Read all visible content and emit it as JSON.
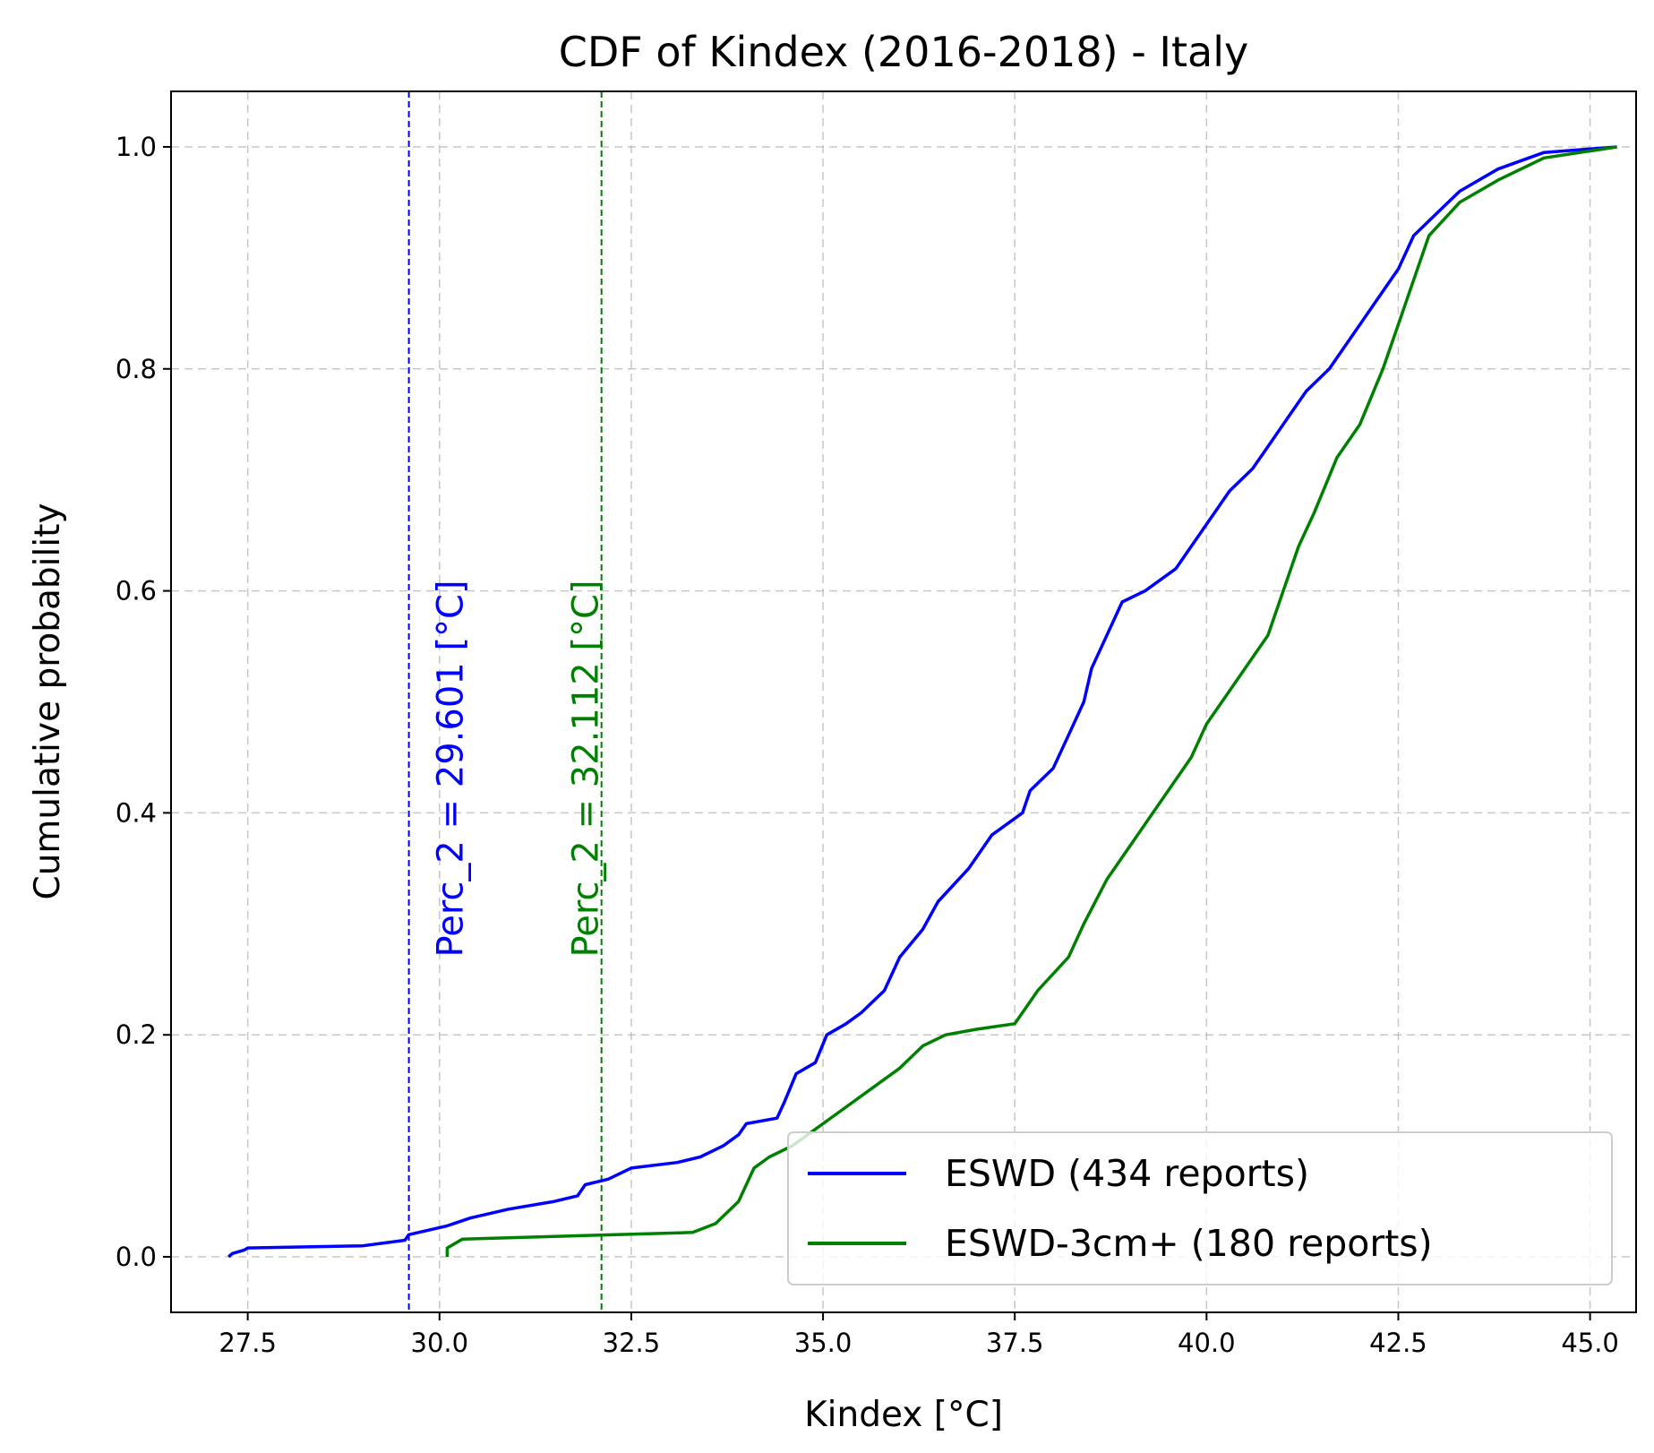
{
  "chart_data": {
    "type": "line",
    "title": "CDF of Kindex (2016-2018) - Italy",
    "xlabel": "Kindex [°C]",
    "ylabel": "Cumulative probability",
    "xlim": [
      26.5,
      45.6
    ],
    "ylim": [
      -0.05,
      1.05
    ],
    "xticks": [
      27.5,
      30.0,
      32.5,
      35.0,
      37.5,
      40.0,
      42.5,
      45.0
    ],
    "xtick_labels": [
      "27.5",
      "30.0",
      "32.5",
      "35.0",
      "37.5",
      "40.0",
      "42.5",
      "45.0"
    ],
    "yticks": [
      0.0,
      0.2,
      0.4,
      0.6,
      0.8,
      1.0
    ],
    "ytick_labels": [
      "0.0",
      "0.2",
      "0.4",
      "0.6",
      "0.8",
      "1.0"
    ],
    "grid": true,
    "legend_position": "lower-right",
    "series": [
      {
        "name": "ESWD (434 reports)",
        "color": "#0000ff",
        "points": [
          [
            27.25,
            0.0
          ],
          [
            27.3,
            0.003
          ],
          [
            27.45,
            0.006
          ],
          [
            27.5,
            0.008
          ],
          [
            29.0,
            0.01
          ],
          [
            29.55,
            0.015
          ],
          [
            29.6,
            0.02
          ],
          [
            30.1,
            0.028
          ],
          [
            30.4,
            0.035
          ],
          [
            30.9,
            0.043
          ],
          [
            31.5,
            0.05
          ],
          [
            31.8,
            0.055
          ],
          [
            31.9,
            0.065
          ],
          [
            32.2,
            0.07
          ],
          [
            32.5,
            0.08
          ],
          [
            33.1,
            0.085
          ],
          [
            33.4,
            0.09
          ],
          [
            33.7,
            0.1
          ],
          [
            33.9,
            0.11
          ],
          [
            34.0,
            0.12
          ],
          [
            34.4,
            0.125
          ],
          [
            34.5,
            0.14
          ],
          [
            34.65,
            0.165
          ],
          [
            34.9,
            0.175
          ],
          [
            35.05,
            0.2
          ],
          [
            35.3,
            0.21
          ],
          [
            35.5,
            0.22
          ],
          [
            35.8,
            0.24
          ],
          [
            36.0,
            0.27
          ],
          [
            36.3,
            0.295
          ],
          [
            36.5,
            0.32
          ],
          [
            36.9,
            0.35
          ],
          [
            37.2,
            0.38
          ],
          [
            37.6,
            0.4
          ],
          [
            37.7,
            0.42
          ],
          [
            38.0,
            0.44
          ],
          [
            38.2,
            0.47
          ],
          [
            38.4,
            0.5
          ],
          [
            38.5,
            0.53
          ],
          [
            38.7,
            0.56
          ],
          [
            38.9,
            0.59
          ],
          [
            39.2,
            0.6
          ],
          [
            39.4,
            0.61
          ],
          [
            39.6,
            0.62
          ],
          [
            39.8,
            0.64
          ],
          [
            40.1,
            0.67
          ],
          [
            40.3,
            0.69
          ],
          [
            40.6,
            0.71
          ],
          [
            40.8,
            0.73
          ],
          [
            41.1,
            0.76
          ],
          [
            41.3,
            0.78
          ],
          [
            41.6,
            0.8
          ],
          [
            41.9,
            0.83
          ],
          [
            42.2,
            0.86
          ],
          [
            42.5,
            0.89
          ],
          [
            42.7,
            0.92
          ],
          [
            43.0,
            0.94
          ],
          [
            43.3,
            0.96
          ],
          [
            43.8,
            0.98
          ],
          [
            44.4,
            0.995
          ],
          [
            45.35,
            1.0
          ]
        ]
      },
      {
        "name": "ESWD-3cm+ (180 reports)",
        "color": "#008000",
        "points": [
          [
            30.1,
            0.0
          ],
          [
            30.1,
            0.008
          ],
          [
            30.3,
            0.016
          ],
          [
            33.3,
            0.022
          ],
          [
            33.6,
            0.03
          ],
          [
            33.9,
            0.05
          ],
          [
            34.1,
            0.08
          ],
          [
            34.3,
            0.09
          ],
          [
            34.6,
            0.1
          ],
          [
            35.2,
            0.13
          ],
          [
            35.6,
            0.15
          ],
          [
            36.0,
            0.17
          ],
          [
            36.3,
            0.19
          ],
          [
            36.6,
            0.2
          ],
          [
            37.0,
            0.205
          ],
          [
            37.5,
            0.21
          ],
          [
            37.8,
            0.24
          ],
          [
            38.2,
            0.27
          ],
          [
            38.4,
            0.3
          ],
          [
            38.7,
            0.34
          ],
          [
            38.9,
            0.36
          ],
          [
            39.3,
            0.4
          ],
          [
            39.6,
            0.43
          ],
          [
            39.8,
            0.45
          ],
          [
            40.0,
            0.48
          ],
          [
            40.2,
            0.5
          ],
          [
            40.4,
            0.52
          ],
          [
            40.8,
            0.56
          ],
          [
            41.0,
            0.6
          ],
          [
            41.2,
            0.64
          ],
          [
            41.4,
            0.67
          ],
          [
            41.7,
            0.72
          ],
          [
            42.0,
            0.75
          ],
          [
            42.3,
            0.8
          ],
          [
            42.5,
            0.84
          ],
          [
            42.7,
            0.88
          ],
          [
            42.9,
            0.92
          ],
          [
            43.3,
            0.95
          ],
          [
            43.8,
            0.97
          ],
          [
            44.4,
            0.99
          ],
          [
            45.35,
            1.0
          ]
        ]
      }
    ],
    "vlines": [
      {
        "x": 29.601,
        "color": "#0000ff",
        "label": "Perc_2 = 29.601 [°C]"
      },
      {
        "x": 32.112,
        "color": "#008000",
        "label": "Perc_2 = 32.112 [°C]"
      }
    ]
  }
}
